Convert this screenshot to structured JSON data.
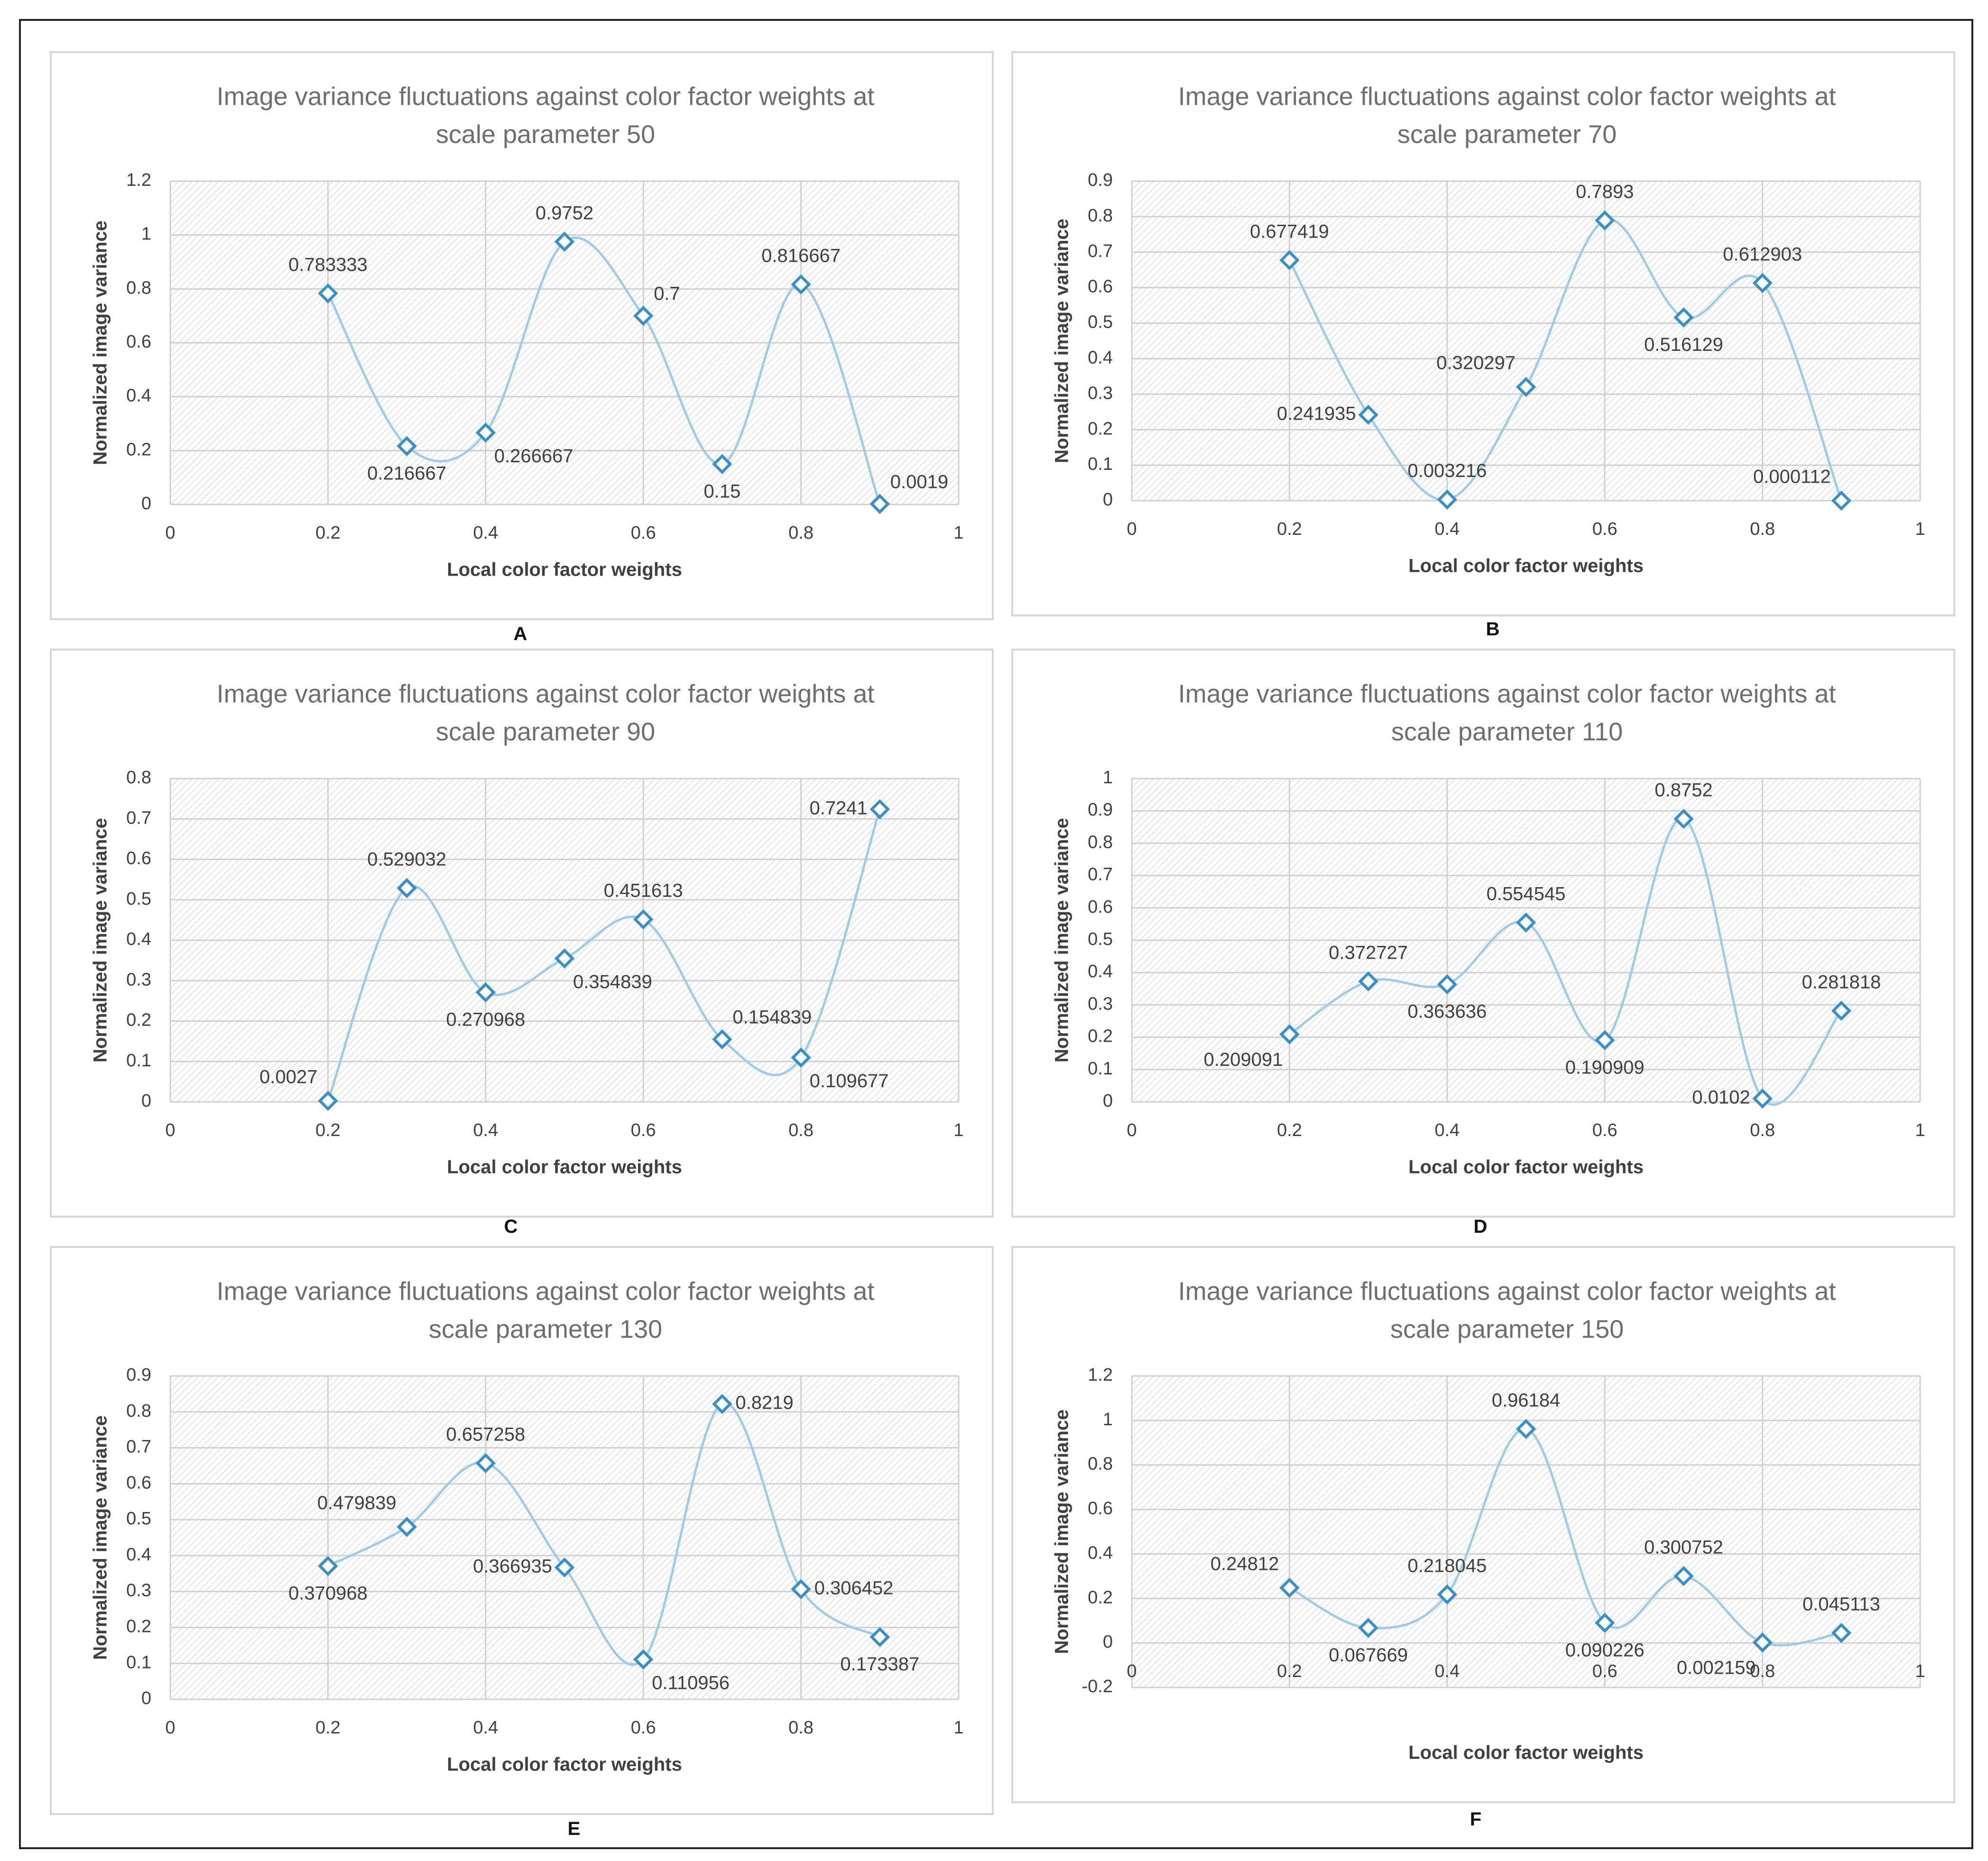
{
  "figure": {
    "labels": [
      "A",
      "B",
      "C",
      "D",
      "E",
      "F"
    ]
  },
  "chart_data": [
    {
      "type": "line",
      "title": "Image variance fluctuations against color factor weights at scale parameter 50",
      "title_lines": [
        "Image variance fluctuations against color factor weights at",
        "scale parameter 50"
      ],
      "xlabel": "Local color factor weights",
      "ylabel": "Normalized image variance",
      "xlim": [
        0,
        1
      ],
      "ylim": [
        0,
        1.2
      ],
      "x_ticks": [
        "0",
        "0.2",
        "0.4",
        "0.6",
        "0.8",
        "1"
      ],
      "y_ticks": [
        "0",
        "0.2",
        "0.4",
        "0.6",
        "0.8",
        "1",
        "1.2"
      ],
      "series": [
        {
          "name": "Normalized image variance",
          "x": [
            0.2,
            0.3,
            0.4,
            0.5,
            0.6,
            0.7,
            0.8,
            0.9
          ],
          "values": [
            0.783333,
            0.216667,
            0.266667,
            0.9752,
            0.7,
            0.15,
            0.816667,
            0.0019
          ],
          "labels": [
            "0.783333",
            "0.216667",
            "0.266667",
            "0.9752",
            "0.7",
            "0.15",
            "0.816667",
            "0.0019"
          ]
        }
      ],
      "label_pos": [
        "above",
        "below",
        "below-right",
        "above",
        "above-right",
        "below",
        "above",
        "above-right"
      ],
      "figure_label": "A"
    },
    {
      "type": "line",
      "title": "Image variance fluctuations against color factor weights at scale parameter 70",
      "title_lines": [
        "Image variance fluctuations against color factor weights at",
        "scale parameter 70"
      ],
      "xlabel": "Local color factor weights",
      "ylabel": "Normalized image variance",
      "xlim": [
        0,
        1
      ],
      "ylim": [
        0,
        0.9
      ],
      "x_ticks": [
        "0",
        "0.2",
        "0.4",
        "0.6",
        "0.8",
        "1"
      ],
      "y_ticks": [
        "0",
        "0.1",
        "0.2",
        "0.3",
        "0.4",
        "0.5",
        "0.6",
        "0.7",
        "0.8",
        "0.9"
      ],
      "series": [
        {
          "name": "Normalized image variance",
          "x": [
            0.2,
            0.3,
            0.4,
            0.5,
            0.6,
            0.7,
            0.8,
            0.9
          ],
          "values": [
            0.677419,
            0.241935,
            0.003216,
            0.320297,
            0.7893,
            0.516129,
            0.612903,
            0.000112
          ],
          "labels": [
            "0.677419",
            "0.241935",
            "0.003216",
            "0.320297",
            "0.7893",
            "0.516129",
            "0.612903",
            "0.000112"
          ]
        }
      ],
      "label_pos": [
        "above",
        "left",
        "above",
        "above-left",
        "above",
        "below",
        "above",
        "above-left"
      ],
      "figure_label": "B"
    },
    {
      "type": "line",
      "title": "Image variance fluctuations against color factor weights at scale parameter 90",
      "title_lines": [
        "Image variance fluctuations against  color factor weights at",
        "scale parameter  90"
      ],
      "xlabel": "Local color factor weights",
      "ylabel": "Normalized image variance",
      "xlim": [
        0,
        1
      ],
      "ylim": [
        0,
        0.8
      ],
      "x_ticks": [
        "0",
        "0.2",
        "0.4",
        "0.6",
        "0.8",
        "1"
      ],
      "y_ticks": [
        "0",
        "0.1",
        "0.2",
        "0.3",
        "0.4",
        "0.5",
        "0.6",
        "0.7",
        "0.8"
      ],
      "series": [
        {
          "name": "Normalized image variance",
          "x": [
            0.2,
            0.3,
            0.4,
            0.5,
            0.6,
            0.7,
            0.8,
            0.9
          ],
          "values": [
            0.0027,
            0.529032,
            0.270968,
            0.354839,
            0.451613,
            0.154839,
            0.109677,
            0.7241
          ],
          "labels": [
            "0.0027",
            "0.529032",
            "0.270968",
            "0.354839",
            "0.451613",
            "0.154839",
            "0.109677",
            "0.7241"
          ]
        }
      ],
      "label_pos": [
        "above-left",
        "above",
        "below",
        "below-right",
        "above",
        "above-right",
        "below-right",
        "left"
      ],
      "figure_label": "C"
    },
    {
      "type": "line",
      "title": "Image variance fluctuations against color factor weights at scale parameter 110",
      "title_lines": [
        "Image variance fluctuations against color factor weights at",
        "scale parameter 110"
      ],
      "xlabel": "Local color factor weights",
      "ylabel": "Normalized image variance",
      "xlim": [
        0,
        1
      ],
      "ylim": [
        0,
        1
      ],
      "x_ticks": [
        "0",
        "0.2",
        "0.4",
        "0.6",
        "0.8",
        "1"
      ],
      "y_ticks": [
        "0",
        "0.1",
        "0.2",
        "0.3",
        "0.4",
        "0.5",
        "0.6",
        "0.7",
        "0.8",
        "0.9",
        "1"
      ],
      "series": [
        {
          "name": "Normalized image variance",
          "x": [
            0.2,
            0.3,
            0.4,
            0.5,
            0.6,
            0.7,
            0.8,
            0.9
          ],
          "values": [
            0.209091,
            0.372727,
            0.363636,
            0.554545,
            0.190909,
            0.8752,
            0.0102,
            0.281818
          ],
          "labels": [
            "0.209091",
            "0.372727",
            "0.363636",
            "0.554545",
            "0.190909",
            "0.8752",
            "0.0102",
            "0.281818"
          ]
        }
      ],
      "label_pos": [
        "below-left",
        "above",
        "below",
        "above",
        "below",
        "above",
        "left",
        "above"
      ],
      "figure_label": "D"
    },
    {
      "type": "line",
      "title": "Image variance fluctuations against color factor weights at scale parameter 130",
      "title_lines": [
        "Image variance fluctuations against color factor weights at",
        "scale parameter 130"
      ],
      "xlabel": "Local color factor weights",
      "ylabel": "Normalized image variance",
      "xlim": [
        0,
        1
      ],
      "ylim": [
        0,
        0.9
      ],
      "x_ticks": [
        "0",
        "0.2",
        "0.4",
        "0.6",
        "0.8",
        "1"
      ],
      "y_ticks": [
        "0",
        "0.1",
        "0.2",
        "0.3",
        "0.4",
        "0.5",
        "0.6",
        "0.7",
        "0.8",
        "0.9"
      ],
      "series": [
        {
          "name": "Normalized image variance",
          "x": [
            0.2,
            0.3,
            0.4,
            0.5,
            0.6,
            0.7,
            0.8,
            0.9
          ],
          "values": [
            0.370968,
            0.479839,
            0.657258,
            0.366935,
            0.110956,
            0.8219,
            0.306452,
            0.173387
          ],
          "labels": [
            "0.370968",
            "0.479839",
            "0.657258",
            "0.366935",
            "0.110956",
            "0.8219",
            "0.306452",
            "0.173387"
          ]
        }
      ],
      "label_pos": [
        "below",
        "above-left",
        "above",
        "left",
        "below-right",
        "right",
        "right",
        "below"
      ],
      "figure_label": "E"
    },
    {
      "type": "line",
      "title": "Image variance fluctuations against color factor weights at scale parameter 150",
      "title_lines": [
        "Image variance fluctuations against color factor weights at",
        "scale parameter 150"
      ],
      "xlabel": "Local color factor weights",
      "ylabel": "Normalized image variance",
      "xlim": [
        0,
        1
      ],
      "ylim": [
        -0.2,
        1.2
      ],
      "x_ticks": [
        "0",
        "0.2",
        "0.4",
        "0.6",
        "0.8",
        "1"
      ],
      "y_ticks": [
        "-0.2",
        "0",
        "0.2",
        "0.4",
        "0.6",
        "0.8",
        "1",
        "1.2"
      ],
      "series": [
        {
          "name": "Normalized image variance",
          "x": [
            0.2,
            0.3,
            0.4,
            0.5,
            0.6,
            0.7,
            0.8,
            0.9
          ],
          "values": [
            0.24812,
            0.067669,
            0.218045,
            0.96184,
            0.090226,
            0.300752,
            0.002159,
            0.045113
          ],
          "labels": [
            "0.24812",
            "0.067669",
            "0.218045",
            "0.96184",
            "0.090226",
            "0.300752",
            "0.002159",
            "0.045113"
          ]
        }
      ],
      "label_pos": [
        "above-left",
        "below",
        "above",
        "above",
        "below",
        "above",
        "below-left",
        "above"
      ],
      "figure_label": "F"
    }
  ],
  "colors": {
    "line": "#9fcbe5",
    "marker": "#3a8fc9",
    "grid": "#d0d0d0",
    "hatch": "#d4d4d4",
    "title": "#6e6e6e",
    "text": "#404040"
  }
}
